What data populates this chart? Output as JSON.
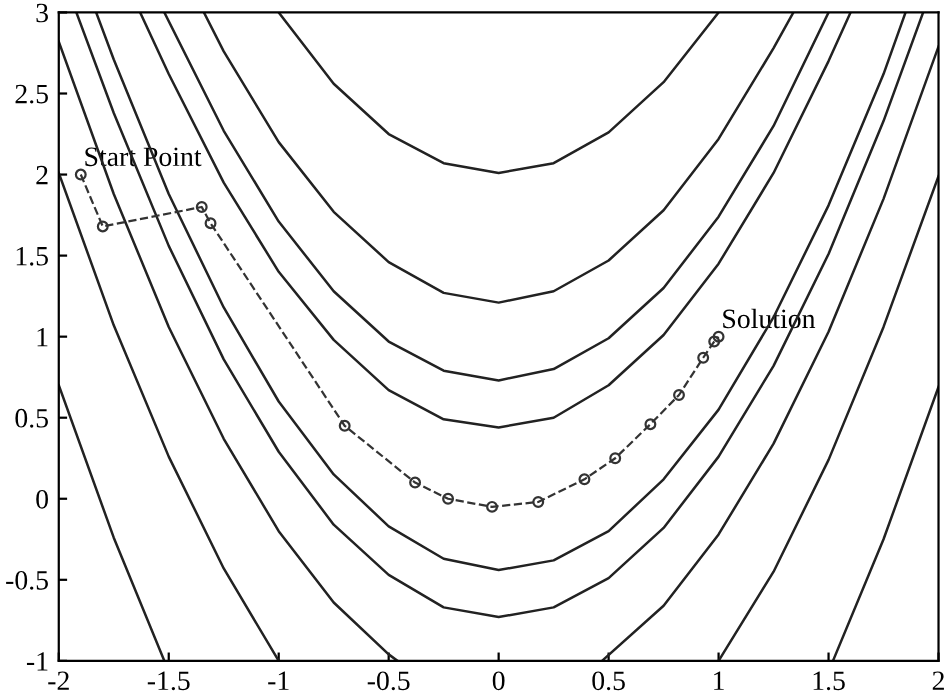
{
  "chart_data": {
    "type": "line",
    "xlim": [
      -2,
      2
    ],
    "ylim": [
      -1,
      3
    ],
    "xticks": [
      -2,
      -1.5,
      -1,
      -0.5,
      0,
      0.5,
      1,
      1.5,
      2
    ],
    "yticks": [
      -1,
      -0.5,
      0,
      0.5,
      1,
      1.5,
      2,
      2.5,
      3
    ],
    "grid": false,
    "legend": false,
    "series": [
      {
        "color": "#222222",
        "line_style": "solid",
        "marker": "none",
        "x": [
          -1.63,
          -1.5,
          -1.25,
          -1,
          -0.75,
          -0.5,
          -0.25,
          0,
          0.25,
          0.5,
          0.75,
          1,
          1.25,
          1.5,
          1.6
        ],
        "values": [
          3,
          2.62,
          1.95,
          1.4,
          0.98,
          0.67,
          0.49,
          0.44,
          0.5,
          0.7,
          1.01,
          1.45,
          2.01,
          2.7,
          3
        ]
      },
      {
        "color": "#222222",
        "line_style": "solid",
        "marker": "none",
        "x": [
          -1.83,
          -1.75,
          -1.5,
          -1.25,
          -1,
          -0.75,
          -0.5,
          -0.25,
          0,
          0.25,
          0.5,
          0.75,
          1,
          1.25,
          1.5,
          1.75,
          1.85
        ],
        "values": [
          3,
          2.71,
          1.88,
          1.18,
          0.6,
          0.15,
          -0.17,
          -0.37,
          -0.44,
          -0.38,
          -0.2,
          0.12,
          0.55,
          1.12,
          1.81,
          2.62,
          3
        ]
      },
      {
        "color": "#222222",
        "line_style": "solid",
        "marker": "none",
        "x": [
          -1.52,
          -1.25,
          -1,
          -0.75,
          -0.5,
          -0.25,
          0,
          0.25,
          0.5,
          0.75,
          1,
          1.25,
          1.5
        ],
        "values": [
          3,
          2.27,
          1.71,
          1.28,
          0.97,
          0.79,
          0.73,
          0.8,
          0.99,
          1.3,
          1.74,
          2.3,
          3
        ]
      },
      {
        "color": "#222222",
        "line_style": "solid",
        "marker": "none",
        "x": [
          -1.92,
          -1.75,
          -1.5,
          -1.25,
          -1,
          -0.75,
          -0.5,
          -0.25,
          0,
          0.25,
          0.5,
          0.75,
          1,
          1.25,
          1.5,
          1.75,
          1.93
        ],
        "values": [
          3,
          2.38,
          1.56,
          0.86,
          0.29,
          -0.16,
          -0.47,
          -0.67,
          -0.73,
          -0.67,
          -0.49,
          -0.18,
          0.26,
          0.82,
          1.51,
          2.33,
          3
        ]
      },
      {
        "color": "#222222",
        "line_style": "solid",
        "marker": "none",
        "x": [
          -1.34,
          -1.25,
          -1,
          -0.75,
          -0.5,
          -0.25,
          0,
          0.25,
          0.5,
          0.75,
          1,
          1.25,
          1.34
        ],
        "values": [
          3,
          2.76,
          2.2,
          1.77,
          1.46,
          1.27,
          1.21,
          1.28,
          1.47,
          1.78,
          2.22,
          2.78,
          3
        ]
      },
      {
        "color": "#222222",
        "line_style": "solid",
        "marker": "none",
        "x": [
          -2,
          -1.75,
          -1.5,
          -1.25,
          -1,
          -0.75,
          -0.5,
          -0.46
        ],
        "values": [
          2.82,
          1.88,
          1.06,
          0.37,
          -0.2,
          -0.64,
          -0.96,
          -1
        ]
      },
      {
        "color": "#222222",
        "line_style": "solid",
        "marker": "none",
        "x": [
          0.47,
          0.75,
          1,
          1.25,
          1.5,
          1.75,
          2
        ],
        "values": [
          -1,
          -0.66,
          -0.22,
          0.34,
          1.03,
          1.85,
          2.79
        ]
      },
      {
        "color": "#222222",
        "line_style": "solid",
        "marker": "none",
        "x": [
          -1,
          -0.75,
          -0.5,
          -0.25,
          0,
          0.25,
          0.5,
          0.75,
          1
        ],
        "values": [
          3,
          2.56,
          2.25,
          2.07,
          2.01,
          2.07,
          2.26,
          2.57,
          3
        ]
      },
      {
        "color": "#222222",
        "line_style": "solid",
        "marker": "none",
        "x": [
          -2,
          -1.75,
          -1.5,
          -1.25,
          -1
        ],
        "values": [
          2.01,
          1.07,
          0.26,
          -0.43,
          -1
        ]
      },
      {
        "color": "#222222",
        "line_style": "solid",
        "marker": "none",
        "x": [
          1,
          1.25,
          1.5,
          1.75,
          2
        ],
        "values": [
          -1,
          -0.45,
          0.24,
          1.06,
          1.99
        ]
      },
      {
        "color": "#222222",
        "line_style": "solid",
        "marker": "none",
        "x": [
          -2,
          -1.75,
          -1.52
        ],
        "values": [
          0.7,
          -0.24,
          -1
        ]
      },
      {
        "color": "#222222",
        "line_style": "solid",
        "marker": "none",
        "x": [
          1.52,
          1.75,
          2
        ],
        "values": [
          -1,
          -0.25,
          0.69
        ]
      },
      {
        "color": "#333333",
        "line_style": "dashed",
        "marker": "circle",
        "x": [
          -1.9,
          -1.8,
          -1.35,
          -1.31,
          -0.7,
          -0.38,
          -0.23,
          -0.03,
          0.18,
          0.39,
          0.53,
          0.69,
          0.82,
          0.93,
          0.98,
          1.0
        ],
        "values": [
          2.0,
          1.68,
          1.8,
          1.7,
          0.45,
          0.1,
          0.0,
          -0.05,
          -0.02,
          0.12,
          0.25,
          0.46,
          0.64,
          0.87,
          0.97,
          1.0
        ]
      }
    ],
    "annotations": [
      {
        "text": "Start Point",
        "x": -1.9,
        "y": 2.0
      },
      {
        "text": "Solution",
        "x": 1.0,
        "y": 1.0
      }
    ]
  }
}
